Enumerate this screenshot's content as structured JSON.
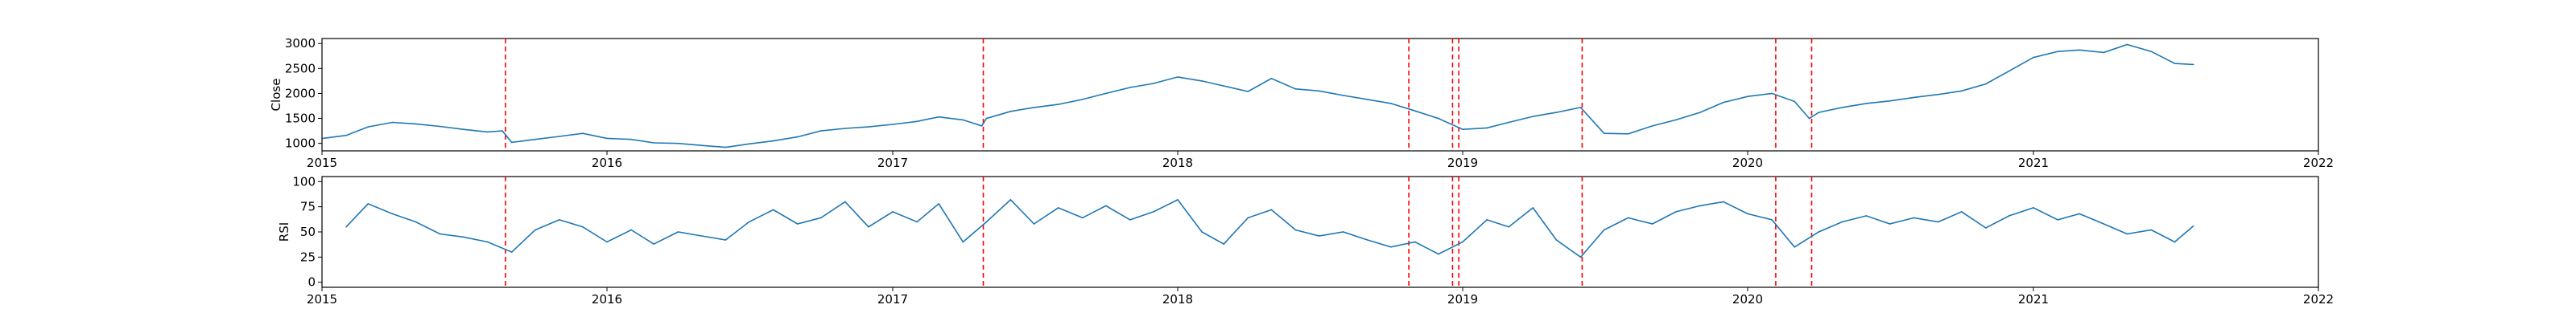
{
  "chart_data": [
    {
      "type": "line",
      "ylabel": "Close",
      "xlim": [
        "2015-01-01",
        "2022-01-01"
      ],
      "ylim": [
        850,
        3100
      ],
      "x_ticks": [
        "2015",
        "2016",
        "2017",
        "2018",
        "2019",
        "2020",
        "2021",
        "2022"
      ],
      "y_ticks": [
        1000,
        1500,
        2000,
        2500,
        3000
      ],
      "grid": false,
      "line_color": "#1f77b4",
      "vline_color": "#ff0000",
      "series": [
        {
          "x": [
            "2015-01-02",
            "2015-02-01",
            "2015-03-01",
            "2015-04-01",
            "2015-05-01",
            "2015-06-01",
            "2015-07-01",
            "2015-08-01",
            "2015-08-20",
            "2015-09-01",
            "2015-10-01",
            "2015-11-01",
            "2015-12-01",
            "2016-01-01",
            "2016-02-01",
            "2016-03-01",
            "2016-04-01",
            "2016-05-01",
            "2016-06-01",
            "2016-07-01",
            "2016-08-01",
            "2016-09-01",
            "2016-10-01",
            "2016-11-01",
            "2016-12-01",
            "2017-01-01",
            "2017-02-01",
            "2017-03-01",
            "2017-04-01",
            "2017-04-25",
            "2017-05-01",
            "2017-06-01",
            "2017-07-01",
            "2017-08-01",
            "2017-09-01",
            "2017-10-01",
            "2017-11-01",
            "2017-12-01",
            "2018-01-01",
            "2018-02-01",
            "2018-03-01",
            "2018-04-01",
            "2018-05-01",
            "2018-06-01",
            "2018-07-01",
            "2018-08-01",
            "2018-09-01",
            "2018-10-01",
            "2018-11-01",
            "2018-12-01",
            "2019-01-01",
            "2019-02-01",
            "2019-03-01",
            "2019-04-01",
            "2019-05-01",
            "2019-06-01",
            "2019-07-01",
            "2019-08-01",
            "2019-09-01",
            "2019-10-01",
            "2019-11-01",
            "2019-12-01",
            "2020-01-01",
            "2020-02-01",
            "2020-03-01",
            "2020-03-20",
            "2020-04-01",
            "2020-05-01",
            "2020-06-01",
            "2020-07-01",
            "2020-08-01",
            "2020-09-01",
            "2020-10-01",
            "2020-11-01",
            "2020-12-01",
            "2021-01-01",
            "2021-02-01",
            "2021-03-01",
            "2021-04-01",
            "2021-05-01",
            "2021-06-01",
            "2021-07-01",
            "2021-07-25"
          ],
          "values": [
            1100,
            1160,
            1330,
            1420,
            1390,
            1340,
            1280,
            1230,
            1250,
            1020,
            1080,
            1140,
            1200,
            1100,
            1080,
            1010,
            1000,
            960,
            920,
            990,
            1050,
            1130,
            1250,
            1300,
            1330,
            1380,
            1440,
            1530,
            1470,
            1350,
            1500,
            1640,
            1720,
            1780,
            1880,
            2000,
            2120,
            2200,
            2330,
            2250,
            2150,
            2040,
            2300,
            2090,
            2050,
            1960,
            1880,
            1800,
            1650,
            1500,
            1280,
            1310,
            1420,
            1540,
            1620,
            1720,
            1200,
            1190,
            1350,
            1470,
            1620,
            1820,
            1940,
            2000,
            1840,
            1500,
            1620,
            1720,
            1800,
            1850,
            1920,
            1980,
            2050,
            2190,
            2450,
            2720,
            2840,
            2870,
            2820,
            2980,
            2840,
            2600,
            2580
          ]
        }
      ],
      "vlines": [
        "2015-08-24",
        "2017-04-27",
        "2018-10-24",
        "2018-12-19",
        "2018-12-27",
        "2019-06-03",
        "2020-02-06",
        "2020-03-23"
      ]
    },
    {
      "type": "line",
      "ylabel": "RSI",
      "xlim": [
        "2015-01-01",
        "2022-01-01"
      ],
      "ylim": [
        -5,
        105
      ],
      "x_ticks": [
        "2015",
        "2016",
        "2017",
        "2018",
        "2019",
        "2020",
        "2021",
        "2022"
      ],
      "y_ticks": [
        0,
        25,
        50,
        75,
        100
      ],
      "grid": false,
      "line_color": "#1f77b4",
      "vline_color": "#ff0000",
      "series": [
        {
          "x": [
            "2015-02-01",
            "2015-03-01",
            "2015-04-01",
            "2015-05-01",
            "2015-06-01",
            "2015-07-01",
            "2015-08-01",
            "2015-09-01",
            "2015-10-01",
            "2015-11-01",
            "2015-12-01",
            "2016-01-01",
            "2016-02-01",
            "2016-03-01",
            "2016-04-01",
            "2016-05-01",
            "2016-06-01",
            "2016-07-01",
            "2016-08-01",
            "2016-09-01",
            "2016-10-01",
            "2016-11-01",
            "2016-12-01",
            "2017-01-01",
            "2017-02-01",
            "2017-03-01",
            "2017-04-01",
            "2017-05-01",
            "2017-06-01",
            "2017-07-01",
            "2017-08-01",
            "2017-09-01",
            "2017-10-01",
            "2017-11-01",
            "2017-12-01",
            "2018-01-01",
            "2018-02-01",
            "2018-03-01",
            "2018-04-01",
            "2018-05-01",
            "2018-06-01",
            "2018-07-01",
            "2018-08-01",
            "2018-09-01",
            "2018-10-01",
            "2018-11-01",
            "2018-12-01",
            "2019-01-01",
            "2019-02-01",
            "2019-03-01",
            "2019-04-01",
            "2019-05-01",
            "2019-06-01",
            "2019-07-01",
            "2019-08-01",
            "2019-09-01",
            "2019-10-01",
            "2019-11-01",
            "2019-12-01",
            "2020-01-01",
            "2020-02-01",
            "2020-03-01",
            "2020-04-01",
            "2020-05-01",
            "2020-06-01",
            "2020-07-01",
            "2020-08-01",
            "2020-09-01",
            "2020-10-01",
            "2020-11-01",
            "2020-12-01",
            "2021-01-01",
            "2021-02-01",
            "2021-03-01",
            "2021-04-01",
            "2021-05-01",
            "2021-06-01",
            "2021-07-01",
            "2021-07-25"
          ],
          "values": [
            55,
            78,
            68,
            60,
            48,
            45,
            40,
            30,
            52,
            62,
            55,
            40,
            52,
            38,
            50,
            46,
            42,
            60,
            72,
            58,
            64,
            80,
            55,
            70,
            60,
            78,
            40,
            60,
            82,
            58,
            74,
            64,
            76,
            62,
            70,
            82,
            50,
            38,
            64,
            72,
            52,
            46,
            50,
            42,
            35,
            40,
            28,
            40,
            62,
            55,
            74,
            42,
            25,
            52,
            64,
            58,
            70,
            76,
            80,
            68,
            62,
            35,
            50,
            60,
            66,
            58,
            64,
            60,
            70,
            54,
            66,
            74,
            62,
            68,
            58,
            48,
            52,
            40,
            56
          ]
        }
      ],
      "vlines": [
        "2015-08-24",
        "2017-04-27",
        "2018-10-24",
        "2018-12-19",
        "2018-12-27",
        "2019-06-03",
        "2020-02-06",
        "2020-03-23"
      ]
    }
  ]
}
